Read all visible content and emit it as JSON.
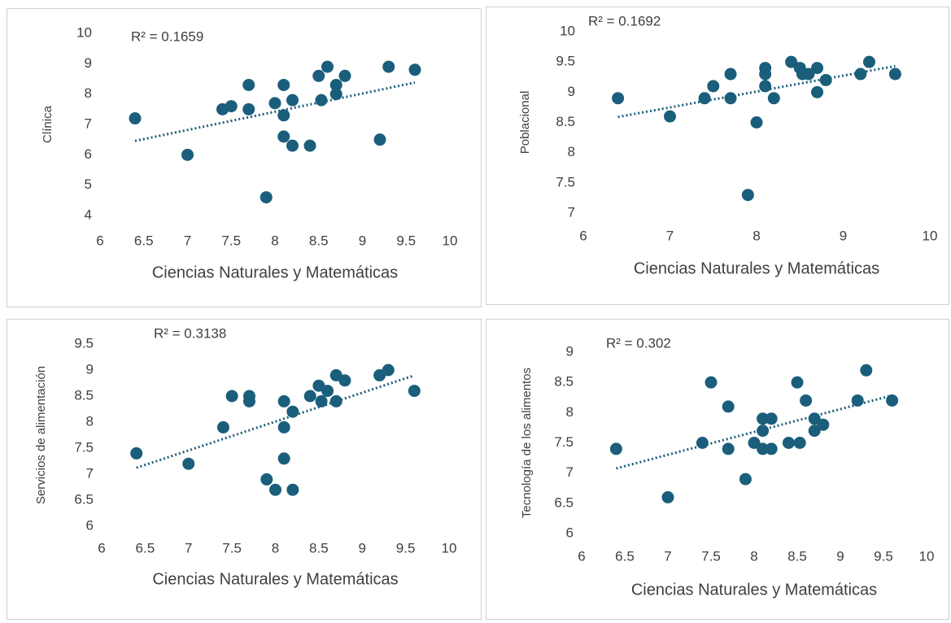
{
  "chart_data": [
    {
      "type": "scatter",
      "annotation": "R² = 0.1659",
      "x_label": "Ciencias Naturales y Matemáticas",
      "y_label": "Clínica",
      "color": "#1b5e7b",
      "trendline": "linear",
      "x": [
        6.4,
        7.0,
        7.4,
        7.5,
        7.7,
        7.7,
        7.9,
        8.0,
        8.1,
        8.1,
        8.1,
        8.2,
        8.2,
        8.4,
        8.5,
        8.53,
        8.6,
        8.7,
        8.7,
        8.8,
        9.2,
        9.3,
        9.6
      ],
      "values": [
        7.2,
        6.0,
        7.5,
        7.6,
        8.3,
        7.5,
        4.6,
        7.7,
        8.3,
        7.3,
        6.6,
        7.8,
        6.3,
        6.3,
        8.6,
        7.8,
        8.9,
        8.3,
        8.0,
        8.6,
        6.5,
        8.9,
        8.8
      ],
      "xlim": [
        6,
        10
      ],
      "xticks": [
        6,
        6.5,
        7,
        7.5,
        8,
        8.5,
        9,
        9.5,
        10
      ],
      "ylim": [
        4,
        10
      ],
      "yticks": [
        4,
        5,
        6,
        7,
        8,
        9,
        10
      ]
    },
    {
      "type": "scatter",
      "annotation": "R² = 0.1692",
      "x_label": "Ciencias Naturales y Matemáticas",
      "y_label": "Poblacional",
      "color": "#1b5e7b",
      "trendline": "linear",
      "x": [
        6.4,
        7.0,
        7.4,
        7.5,
        7.7,
        7.7,
        7.9,
        8.0,
        8.1,
        8.1,
        8.1,
        8.2,
        8.4,
        8.5,
        8.53,
        8.6,
        8.7,
        8.7,
        8.8,
        9.2,
        9.3,
        9.6
      ],
      "values": [
        8.9,
        8.6,
        8.9,
        9.1,
        9.3,
        8.9,
        7.3,
        8.5,
        9.4,
        9.3,
        9.1,
        8.9,
        9.5,
        9.4,
        9.3,
        9.3,
        9.4,
        9.0,
        9.2,
        9.3,
        9.5,
        9.3
      ],
      "xlim": [
        6,
        10
      ],
      "xticks": [
        6,
        7,
        8,
        9,
        10
      ],
      "ylim": [
        7,
        10
      ],
      "yticks": [
        7,
        7.5,
        8,
        8.5,
        9,
        9.5,
        10
      ]
    },
    {
      "type": "scatter",
      "annotation": "R² = 0.3138",
      "x_label": "Ciencias Naturales y Matemáticas",
      "y_label": "Servicios de alimentación",
      "color": "#1b5e7b",
      "trendline": "linear",
      "x": [
        6.4,
        7.0,
        7.4,
        7.5,
        7.7,
        7.7,
        7.9,
        8.0,
        8.1,
        8.1,
        8.1,
        8.2,
        8.2,
        8.4,
        8.5,
        8.53,
        8.6,
        8.7,
        8.7,
        8.8,
        9.2,
        9.3,
        9.6
      ],
      "values": [
        7.4,
        7.2,
        7.9,
        8.5,
        8.5,
        8.4,
        6.9,
        6.7,
        8.4,
        7.9,
        7.3,
        8.2,
        6.7,
        8.5,
        8.7,
        8.4,
        8.6,
        8.9,
        8.4,
        8.8,
        8.9,
        9.0,
        8.6
      ],
      "xlim": [
        6,
        10
      ],
      "xticks": [
        6,
        6.5,
        7,
        7.5,
        8,
        8.5,
        9,
        9.5,
        10
      ],
      "ylim": [
        6,
        9.5
      ],
      "yticks": [
        6,
        6.5,
        7,
        7.5,
        8,
        8.5,
        9,
        9.5
      ]
    },
    {
      "type": "scatter",
      "annotation": "R² = 0.302",
      "x_label": "Ciencias Naturales y Matemáticas",
      "y_label": "Tecnología de los alimentos",
      "color": "#1b5e7b",
      "trendline": "linear",
      "x": [
        6.4,
        7.0,
        7.4,
        7.5,
        7.7,
        7.7,
        7.9,
        8.0,
        8.1,
        8.1,
        8.1,
        8.2,
        8.2,
        8.4,
        8.5,
        8.53,
        8.6,
        8.7,
        8.7,
        8.8,
        9.2,
        9.3,
        9.6
      ],
      "values": [
        7.4,
        6.6,
        7.5,
        8.5,
        8.1,
        7.4,
        6.9,
        7.5,
        7.9,
        7.7,
        7.4,
        7.9,
        7.4,
        7.5,
        8.5,
        7.5,
        8.2,
        7.9,
        7.7,
        7.8,
        8.2,
        8.7,
        8.2
      ],
      "xlim": [
        6,
        10
      ],
      "xticks": [
        6,
        6.5,
        7,
        7.5,
        8,
        8.5,
        9,
        9.5,
        10
      ],
      "ylim": [
        6,
        9
      ],
      "yticks": [
        6,
        6.5,
        7,
        7.5,
        8,
        8.5,
        9
      ]
    }
  ]
}
